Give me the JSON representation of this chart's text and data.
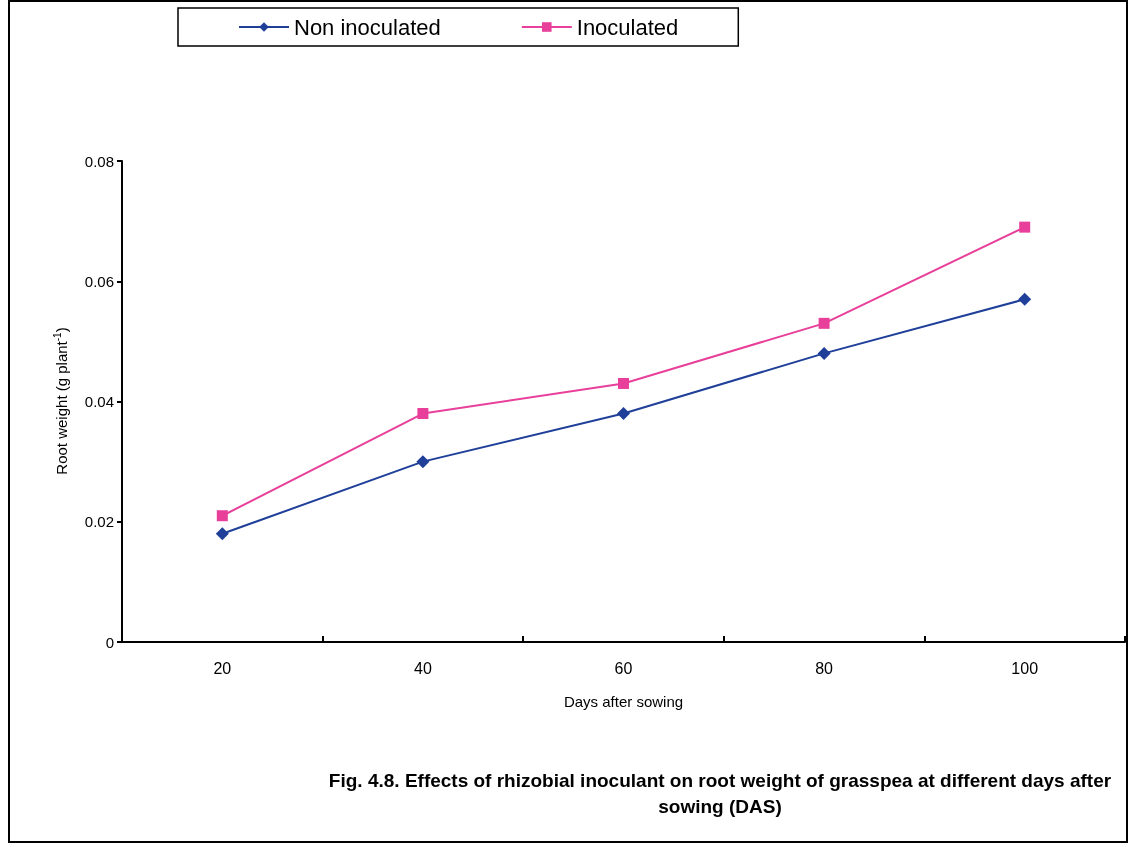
{
  "chart_data": {
    "type": "line",
    "xlabel": "Days after sowing",
    "ylabel": "Root weight (g plant$^{-1}$)",
    "annotations": [
      "Fig. 4.8. Effects of rhizobial inoculant on root weight of grasspea at different days after sowing (DAS)"
    ],
    "categories": [
      "20",
      "40",
      "60",
      "80",
      "100"
    ],
    "series": [
      {
        "name": "Non inoculated",
        "color": "#1f3f99",
        "marker": "diamond",
        "values": [
          0.018,
          0.03,
          0.038,
          0.048,
          0.057
        ]
      },
      {
        "name": "Inoculated",
        "color": "#e8409a",
        "marker": "square",
        "values": [
          0.021,
          0.038,
          0.043,
          0.053,
          0.069
        ]
      }
    ],
    "ylim": [
      0,
      0.08
    ],
    "yticks": [
      0,
      0.02,
      0.04,
      0.06,
      0.08
    ],
    "grid": false,
    "legend": "top",
    "line_style": "solid"
  }
}
